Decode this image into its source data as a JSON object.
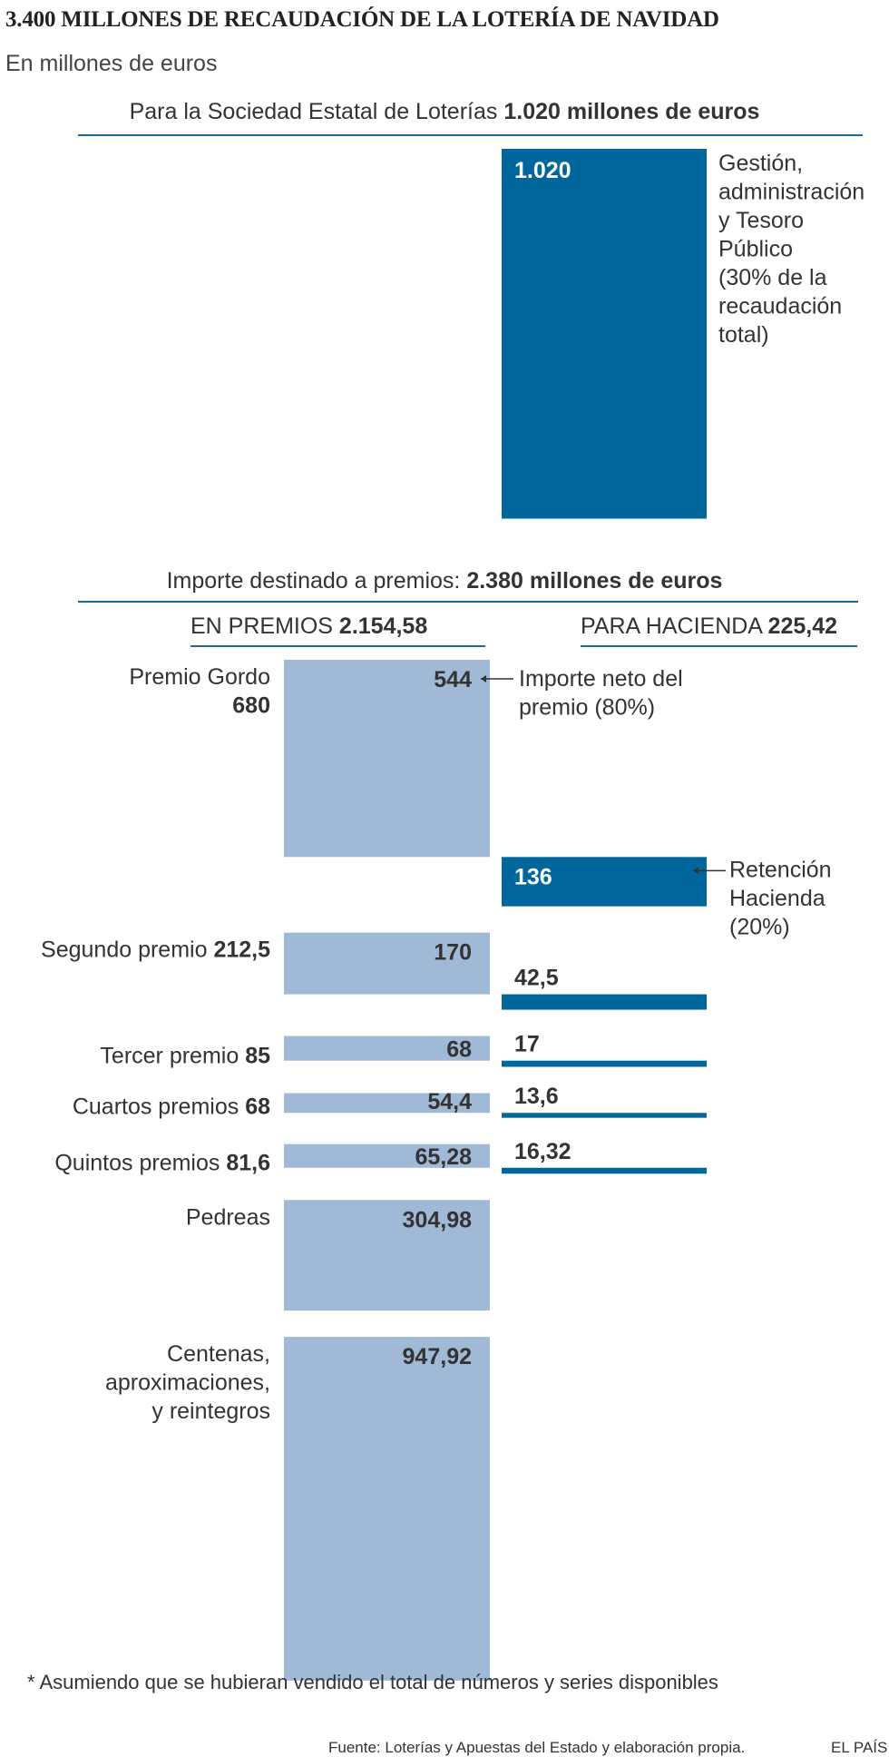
{
  "title": "3.400 MILLONES DE RECAUDACIÓN DE LA LOTERÍA DE NAVIDAD",
  "subtitle": "En millones de euros",
  "top_header": {
    "text": "Para la Sociedad Estatal de Loterías ",
    "bold": "1.020 millones de euros"
  },
  "prizes_header": {
    "text": "Importe destinado a premios: ",
    "bold": "2.380 millones de euros"
  },
  "left_col_header": {
    "text": "EN PREMIOS ",
    "bold": "2.154,58"
  },
  "right_col_header": {
    "text": "PARA HACIENDA ",
    "bold": "225,42"
  },
  "footnote": "* Asumiendo que se hubieran vendido el total de números y series disponibles",
  "source": "Fuente: Loterías y Apuestas del Estado y elaboración propia.",
  "brand": "EL PAÍS",
  "colors": {
    "dark": "#00669c",
    "light": "#a0b9d7",
    "text": "#333333",
    "rule": "#1a6a9a"
  },
  "chart_data": {
    "type": "bar",
    "unit": "millones de euros",
    "management": {
      "value": 1020,
      "value_label": "1.020",
      "annotation": [
        "Gestión,",
        "administración",
        "y Tesoro",
        "Público",
        "(30% de la",
        "recaudación",
        "total)"
      ]
    },
    "net_annotation": [
      "Importe neto del",
      "premio (80%)"
    ],
    "tax_annotation": [
      "Retención",
      "Hacienda",
      "(20%)"
    ],
    "categories": [
      {
        "label_lines": [
          {
            "text": "Premio Gordo",
            "bold": ""
          },
          {
            "text": "",
            "bold": "680"
          }
        ],
        "total": 680,
        "net": 544,
        "net_label": "544",
        "tax": 136,
        "tax_label": "136"
      },
      {
        "label_lines": [
          {
            "text": "Segundo premio ",
            "bold": "212,5"
          }
        ],
        "total": 212.5,
        "net": 170,
        "net_label": "170",
        "tax": 42.5,
        "tax_label": "42,5"
      },
      {
        "label_lines": [
          {
            "text": "Tercer premio ",
            "bold": "85"
          }
        ],
        "total": 85,
        "net": 68,
        "net_label": "68",
        "tax": 17,
        "tax_label": "17"
      },
      {
        "label_lines": [
          {
            "text": "Cuartos premios ",
            "bold": "68"
          }
        ],
        "total": 68,
        "net": 54.4,
        "net_label": "54,4",
        "tax": 13.6,
        "tax_label": "13,6"
      },
      {
        "label_lines": [
          {
            "text": "Quintos premios ",
            "bold": "81,6"
          }
        ],
        "total": 81.6,
        "net": 65.28,
        "net_label": "65,28",
        "tax": 16.32,
        "tax_label": "16,32"
      },
      {
        "label_lines": [
          {
            "text": "Pedreas",
            "bold": ""
          }
        ],
        "total": 304.98,
        "net": 304.98,
        "net_label": "304,98",
        "tax": null,
        "tax_label": ""
      },
      {
        "label_lines": [
          {
            "text": "Centenas,",
            "bold": ""
          },
          {
            "text": "aproximaciones,",
            "bold": ""
          },
          {
            "text": "y reintegros",
            "bold": ""
          }
        ],
        "total": 947.92,
        "net": 947.92,
        "net_label": "947,92",
        "tax": null,
        "tax_label": ""
      }
    ]
  }
}
